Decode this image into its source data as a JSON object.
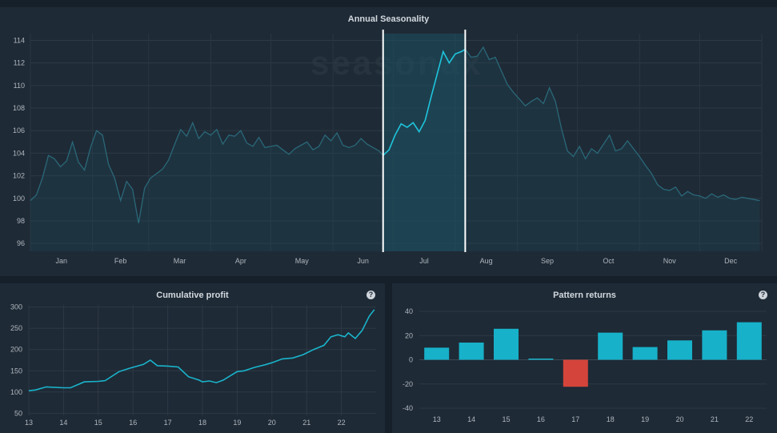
{
  "seasonality": {
    "title": "Annual Seasonality",
    "watermark": "seasonax",
    "chart_data": {
      "type": "line",
      "ylim": [
        95.3,
        114.6
      ],
      "yticks": [
        96,
        98,
        100,
        102,
        104,
        106,
        108,
        110,
        112,
        114
      ],
      "months": [
        "Jan",
        "Feb",
        "Mar",
        "Apr",
        "May",
        "Jun",
        "Jul",
        "Aug",
        "Sep",
        "Oct",
        "Nov",
        "Dec"
      ],
      "highlight": {
        "start_day": 176,
        "end_day": 217
      },
      "x_days": [
        0,
        3,
        6,
        9,
        12,
        15,
        18,
        21,
        24,
        27,
        30,
        33,
        36,
        39,
        42,
        45,
        48,
        51,
        54,
        57,
        60,
        63,
        66,
        69,
        72,
        75,
        78,
        81,
        84,
        87,
        90,
        93,
        96,
        99,
        102,
        105,
        108,
        111,
        114,
        117,
        120,
        123,
        126,
        129,
        132,
        135,
        138,
        141,
        144,
        147,
        150,
        153,
        156,
        159,
        162,
        165,
        168,
        171,
        174,
        176,
        179,
        182,
        185,
        188,
        191,
        194,
        197,
        200,
        203,
        206,
        209,
        212,
        215,
        217,
        220,
        223,
        226,
        229,
        232,
        235,
        238,
        241,
        244,
        247,
        250,
        253,
        256,
        259,
        262,
        265,
        268,
        271,
        274,
        277,
        280,
        283,
        286,
        289,
        292,
        295,
        298,
        301,
        304,
        307,
        310,
        313,
        316,
        319,
        322,
        325,
        328,
        331,
        334,
        337,
        340,
        343,
        346,
        349,
        352,
        355,
        358,
        361,
        364
      ],
      "values": [
        99.8,
        100.3,
        101.8,
        103.8,
        103.5,
        102.8,
        103.3,
        105.0,
        103.2,
        102.5,
        104.5,
        106.0,
        105.6,
        103.0,
        101.8,
        99.8,
        101.5,
        100.8,
        97.8,
        100.9,
        101.8,
        102.2,
        102.6,
        103.4,
        104.8,
        106.1,
        105.5,
        106.7,
        105.3,
        105.9,
        105.6,
        106.1,
        104.8,
        105.6,
        105.5,
        106.0,
        104.9,
        104.6,
        105.4,
        104.5,
        104.6,
        104.7,
        104.3,
        103.9,
        104.4,
        104.7,
        105.0,
        104.3,
        104.6,
        105.6,
        105.1,
        105.8,
        104.7,
        104.5,
        104.7,
        105.3,
        104.8,
        104.5,
        104.2,
        103.8,
        104.3,
        105.6,
        106.6,
        106.3,
        106.7,
        105.9,
        106.9,
        109.0,
        111.0,
        113.0,
        112.0,
        112.8,
        113.0,
        113.2,
        112.5,
        112.6,
        113.4,
        112.3,
        112.5,
        111.3,
        110.1,
        109.4,
        108.8,
        108.2,
        108.6,
        108.9,
        108.4,
        109.8,
        108.6,
        106.2,
        104.2,
        103.7,
        104.6,
        103.5,
        104.4,
        104.0,
        104.8,
        105.6,
        104.2,
        104.4,
        105.1,
        104.4,
        103.7,
        102.9,
        102.2,
        101.2,
        100.8,
        100.7,
        101.0,
        100.2,
        100.6,
        100.3,
        100.2,
        100.0,
        100.4,
        100.1,
        100.3,
        100.0,
        99.9,
        100.1,
        100.0,
        99.9,
        99.8
      ]
    }
  },
  "cumulative": {
    "title": "Cumulative profit",
    "help": "?",
    "chart_data": {
      "type": "line",
      "ylim": [
        45,
        305
      ],
      "xlim": [
        13,
        23
      ],
      "yticks": [
        50,
        100,
        150,
        200,
        250,
        300
      ],
      "xticks": [
        13,
        14,
        15,
        16,
        17,
        18,
        19,
        20,
        21,
        22
      ],
      "x": [
        13.0,
        13.2,
        13.5,
        14.0,
        14.2,
        14.6,
        15.0,
        15.2,
        15.6,
        15.9,
        16.3,
        16.5,
        16.7,
        17.0,
        17.3,
        17.6,
        17.9,
        18.0,
        18.2,
        18.4,
        18.6,
        18.8,
        19.0,
        19.2,
        19.5,
        19.8,
        20.0,
        20.3,
        20.6,
        20.9,
        21.2,
        21.5,
        21.7,
        21.9,
        22.1,
        22.2,
        22.4,
        22.6,
        22.8,
        22.95
      ],
      "y": [
        103,
        105,
        112,
        110,
        110,
        124,
        125,
        127,
        148,
        156,
        165,
        175,
        162,
        161,
        159,
        136,
        128,
        124,
        126,
        122,
        128,
        138,
        148,
        150,
        158,
        164,
        169,
        178,
        180,
        188,
        200,
        210,
        230,
        235,
        230,
        239,
        226,
        245,
        278,
        294
      ]
    }
  },
  "returns": {
    "title": "Pattern returns",
    "help": "?",
    "chart_data": {
      "type": "bar",
      "categories": [
        "13",
        "14",
        "15",
        "16",
        "17",
        "18",
        "19",
        "20",
        "21",
        "22"
      ],
      "values": [
        10,
        14.2,
        25.6,
        1.0,
        -22.3,
        22.4,
        10.5,
        16.0,
        24.3,
        31.0
      ],
      "ylim": [
        -40,
        40
      ],
      "yticks": [
        40,
        20,
        0,
        -20,
        -40
      ],
      "positive_color": "#17b1c9",
      "negative_color": "#d5443a"
    }
  }
}
